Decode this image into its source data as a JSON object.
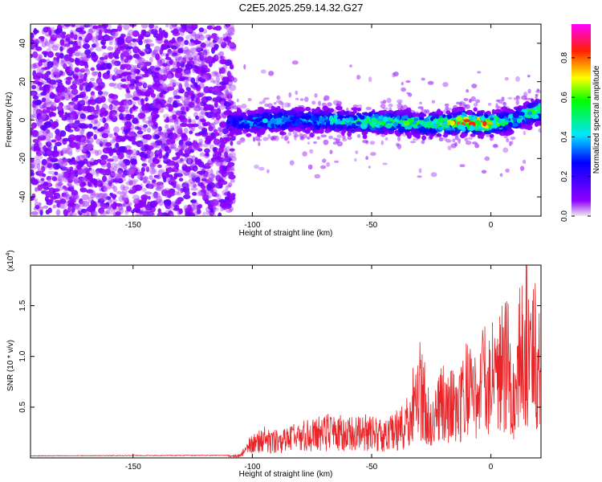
{
  "figure": {
    "title": "C2E5.2025.259.14.32.G27"
  },
  "chart_data": [
    {
      "type": "heatmap",
      "panel": "top",
      "title": "",
      "xlabel": "Height of straight line (km)",
      "ylabel": "Frequency (Hz)",
      "xlim": [
        -193,
        21
      ],
      "ylim": [
        -50,
        50
      ],
      "xticks": [
        -150,
        -100,
        -50,
        0
      ],
      "yticks": [
        -40,
        -20,
        0,
        20,
        40
      ],
      "colorbar": {
        "label": "Normalized spectral amplitude",
        "range": [
          0.0,
          0.97
        ],
        "ticks": [
          0.0,
          0.2,
          0.4,
          0.6,
          0.8
        ],
        "colormap": [
          "#f0f0f0",
          "#7800ff",
          "#0000ff",
          "#00e5ff",
          "#00ff00",
          "#ffff00",
          "#ff0000",
          "#ff00ff"
        ]
      },
      "signal_trace": {
        "x": [
          -110,
          -100,
          -90,
          -80,
          -70,
          -60,
          -50,
          -40,
          -30,
          -20,
          -10,
          0,
          5,
          10,
          15,
          21
        ],
        "y": [
          -1,
          -1,
          0,
          0,
          0,
          -1,
          -1,
          -1,
          -2,
          -2,
          -1,
          -2,
          -1,
          0,
          3,
          5
        ],
        "peak_amplitude": [
          0.3,
          0.4,
          0.5,
          0.4,
          0.5,
          0.5,
          0.6,
          0.6,
          0.6,
          0.7,
          0.9,
          0.8,
          0.6,
          0.5,
          0.6,
          0.6
        ]
      },
      "noise_region": {
        "x_range": [
          -193,
          -110
        ],
        "typical_amplitude": 0.15
      }
    },
    {
      "type": "line",
      "panel": "bottom",
      "xlabel": "Height of straight line (km)",
      "ylabel": "SNR (10 * v/v)",
      "y_scale_label": "(x10",
      "y_scale_exp": "4",
      "y_scale_suffix": ")",
      "xlim": [
        -193,
        21
      ],
      "ylim": [
        0,
        19000
      ],
      "xticks": [
        -150,
        -100,
        -50,
        0
      ],
      "yticks": [
        5000,
        10000,
        15000
      ],
      "ytick_labels": [
        "0.5",
        "1.0",
        "1.5"
      ],
      "color": "#e8262a",
      "envelope": {
        "x": [
          -193,
          -110,
          -105,
          -100,
          -95,
          -90,
          -80,
          -70,
          -60,
          -50,
          -45,
          -40,
          -35,
          -30,
          -25,
          -20,
          -15,
          -10,
          -5,
          0,
          5,
          8,
          10,
          12,
          15,
          18,
          21
        ],
        "y": [
          200,
          250,
          400,
          2500,
          3000,
          2600,
          3500,
          4200,
          4000,
          4200,
          3500,
          4500,
          6000,
          11500,
          6500,
          9000,
          8000,
          11000,
          12000,
          13000,
          14500,
          15500,
          11000,
          16000,
          19000,
          17000,
          14000
        ]
      }
    }
  ]
}
